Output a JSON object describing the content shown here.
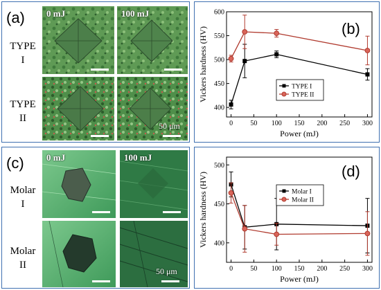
{
  "panels": {
    "a": {
      "label": "(a)",
      "col_labels": [
        "0 mJ",
        "100 mJ"
      ],
      "row_labels": [
        [
          "TYPE",
          "I"
        ],
        [
          "TYPE",
          "II"
        ]
      ],
      "scale": "50 μm"
    },
    "b": {
      "label": "(b)"
    },
    "c": {
      "label": "(c)",
      "col_labels": [
        "0 mJ",
        "100 mJ"
      ],
      "row_labels": [
        [
          "Molar",
          "I"
        ],
        [
          "Molar",
          "II"
        ]
      ],
      "scale": "50 μm"
    },
    "d": {
      "label": "(d)"
    }
  },
  "chart_data": [
    {
      "type": "line",
      "xlabel": "Power (mJ)",
      "ylabel": "Vickers hardness (HV)",
      "xlim": [
        -10,
        310
      ],
      "ylim": [
        380,
        600
      ],
      "xticks": [
        0,
        50,
        100,
        150,
        200,
        250,
        300
      ],
      "yticks": [
        400,
        450,
        500,
        550,
        600
      ],
      "legend": "lower-left",
      "series": [
        {
          "name": "TYPE I",
          "color": "#000000",
          "marker": "square",
          "x": [
            0,
            30,
            100,
            300
          ],
          "y": [
            406,
            497,
            511,
            469
          ],
          "err": [
            9,
            35,
            7,
            12
          ]
        },
        {
          "name": "TYPE II",
          "color": "#b03a2e",
          "marker": "circle",
          "x": [
            0,
            30,
            100,
            300
          ],
          "y": [
            502,
            558,
            555,
            519
          ],
          "err": [
            7,
            35,
            8,
            30
          ]
        }
      ]
    },
    {
      "type": "line",
      "xlabel": "Power (mJ)",
      "ylabel": "Vickers hardness (HV)",
      "xlim": [
        -10,
        310
      ],
      "ylim": [
        375,
        510
      ],
      "xticks": [
        0,
        50,
        100,
        150,
        200,
        250,
        300
      ],
      "yticks": [
        400,
        450,
        500
      ],
      "legend": "top-center",
      "series": [
        {
          "name": "Molar I",
          "color": "#000000",
          "marker": "square",
          "x": [
            0,
            30,
            100,
            300
          ],
          "y": [
            475,
            420,
            424,
            422
          ],
          "err": [
            16,
            28,
            33,
            35
          ]
        },
        {
          "name": "Molar II",
          "color": "#b03a2e",
          "marker": "circle",
          "x": [
            0,
            30,
            100,
            300
          ],
          "y": [
            464,
            418,
            411,
            412
          ],
          "err": [
            13,
            30,
            14,
            28
          ]
        }
      ]
    }
  ]
}
